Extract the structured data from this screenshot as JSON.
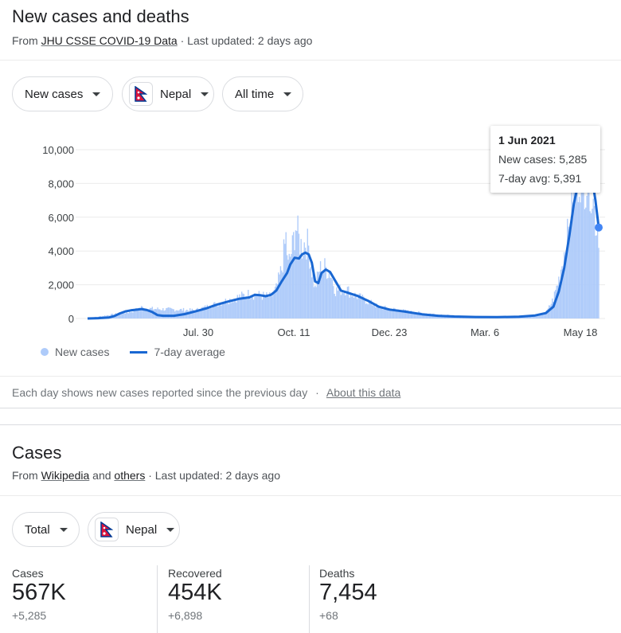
{
  "section1": {
    "title": "New cases and deaths",
    "source_prefix": "From",
    "source_link": "JHU CSSE COVID-19 Data",
    "updated": "· Last updated: 2 days ago",
    "chips": {
      "metric": "New cases",
      "country": "Nepal",
      "range": "All time"
    },
    "legend": {
      "bars": "New cases",
      "line": "7-day average"
    },
    "tooltip": {
      "date": "1 Jun 2021",
      "new_cases": "New cases: 5,285",
      "avg": "7-day avg: 5,391"
    },
    "footer_note": "Each day shows new cases reported since the previous day",
    "footer_sep": "·",
    "footer_link": "About this data"
  },
  "chart_data": {
    "type": "bar",
    "series": [
      {
        "name": "New cases",
        "kind": "bar"
      },
      {
        "name": "7-day average",
        "kind": "line"
      }
    ],
    "x_ticks": [
      "Jul. 30",
      "Oct. 11",
      "Dec. 23",
      "Mar. 6",
      "May 18"
    ],
    "y_ticks": [
      "0",
      "2,000",
      "4,000",
      "6,000",
      "8,000",
      "10,000"
    ],
    "ylim": [
      0,
      10000
    ],
    "avg_points": [
      [
        0,
        0
      ],
      [
        10,
        20
      ],
      [
        20,
        60
      ],
      [
        25,
        150
      ],
      [
        30,
        300
      ],
      [
        35,
        420
      ],
      [
        40,
        480
      ],
      [
        45,
        520
      ],
      [
        50,
        560
      ],
      [
        55,
        500
      ],
      [
        60,
        380
      ],
      [
        65,
        200
      ],
      [
        70,
        160
      ],
      [
        80,
        160
      ],
      [
        90,
        260
      ],
      [
        100,
        420
      ],
      [
        110,
        600
      ],
      [
        120,
        820
      ],
      [
        130,
        1000
      ],
      [
        140,
        1160
      ],
      [
        150,
        1250
      ],
      [
        155,
        1400
      ],
      [
        160,
        1380
      ],
      [
        165,
        1320
      ],
      [
        170,
        1400
      ],
      [
        175,
        1650
      ],
      [
        180,
        2200
      ],
      [
        185,
        2700
      ],
      [
        188,
        3200
      ],
      [
        192,
        3600
      ],
      [
        196,
        3550
      ],
      [
        199,
        3800
      ],
      [
        202,
        3900
      ],
      [
        205,
        3800
      ],
      [
        208,
        3300
      ],
      [
        211,
        2200
      ],
      [
        214,
        2100
      ],
      [
        217,
        2700
      ],
      [
        221,
        2900
      ],
      [
        225,
        2750
      ],
      [
        230,
        2200
      ],
      [
        235,
        1650
      ],
      [
        240,
        1550
      ],
      [
        245,
        1450
      ],
      [
        250,
        1350
      ],
      [
        255,
        1200
      ],
      [
        260,
        1050
      ],
      [
        270,
        700
      ],
      [
        280,
        530
      ],
      [
        295,
        400
      ],
      [
        310,
        250
      ],
      [
        325,
        160
      ],
      [
        340,
        120
      ],
      [
        360,
        90
      ],
      [
        380,
        80
      ],
      [
        400,
        110
      ],
      [
        415,
        180
      ],
      [
        425,
        320
      ],
      [
        432,
        700
      ],
      [
        437,
        1600
      ],
      [
        442,
        3000
      ],
      [
        447,
        5000
      ],
      [
        451,
        6800
      ],
      [
        455,
        8000
      ],
      [
        459,
        8600
      ],
      [
        462,
        8900
      ],
      [
        465,
        8700
      ],
      [
        468,
        8200
      ],
      [
        471,
        7000
      ],
      [
        474,
        5391
      ]
    ],
    "bar_points": [
      [
        0,
        20
      ],
      [
        40,
        400
      ],
      [
        50,
        680
      ],
      [
        55,
        600
      ],
      [
        100,
        500
      ],
      [
        150,
        1500
      ],
      [
        170,
        1300
      ],
      [
        175,
        1800
      ],
      [
        180,
        3000
      ],
      [
        184,
        4900
      ],
      [
        186,
        3200
      ],
      [
        190,
        4300
      ],
      [
        193,
        5700
      ],
      [
        196,
        4800
      ],
      [
        199,
        4300
      ],
      [
        202,
        4700
      ],
      [
        205,
        4400
      ],
      [
        207,
        3300
      ],
      [
        211,
        1800
      ],
      [
        215,
        3000
      ],
      [
        220,
        3100
      ],
      [
        225,
        2800
      ],
      [
        230,
        1700
      ],
      [
        240,
        1800
      ],
      [
        245,
        1500
      ],
      [
        255,
        1200
      ],
      [
        270,
        700
      ],
      [
        300,
        400
      ],
      [
        350,
        100
      ],
      [
        400,
        100
      ],
      [
        425,
        300
      ],
      [
        432,
        1200
      ],
      [
        437,
        2400
      ],
      [
        442,
        4000
      ],
      [
        447,
        5600
      ],
      [
        451,
        7800
      ],
      [
        455,
        8700
      ],
      [
        458,
        9300
      ],
      [
        461,
        8600
      ],
      [
        464,
        8800
      ],
      [
        467,
        8200
      ],
      [
        470,
        6500
      ],
      [
        472,
        5700
      ],
      [
        474,
        5285
      ]
    ],
    "total_days": 474,
    "highlight_day": 474
  },
  "section2": {
    "title": "Cases",
    "source_prefix": "From",
    "source_link1": "Wikipedia",
    "and": "and",
    "source_link2": "others",
    "updated": "· Last updated: 2 days ago",
    "chips": {
      "metric": "Total",
      "country": "Nepal"
    },
    "stats": [
      {
        "label": "Cases",
        "value": "567K",
        "delta": "+5,285"
      },
      {
        "label": "Recovered",
        "value": "454K",
        "delta": "+6,898"
      },
      {
        "label": "Deaths",
        "value": "7,454",
        "delta": "+68"
      }
    ]
  },
  "colors": {
    "bar": "#aecbfa",
    "line": "#1967d2",
    "point": "#4285f4",
    "nepal_red": "#dc143c",
    "nepal_blue": "#003893"
  }
}
